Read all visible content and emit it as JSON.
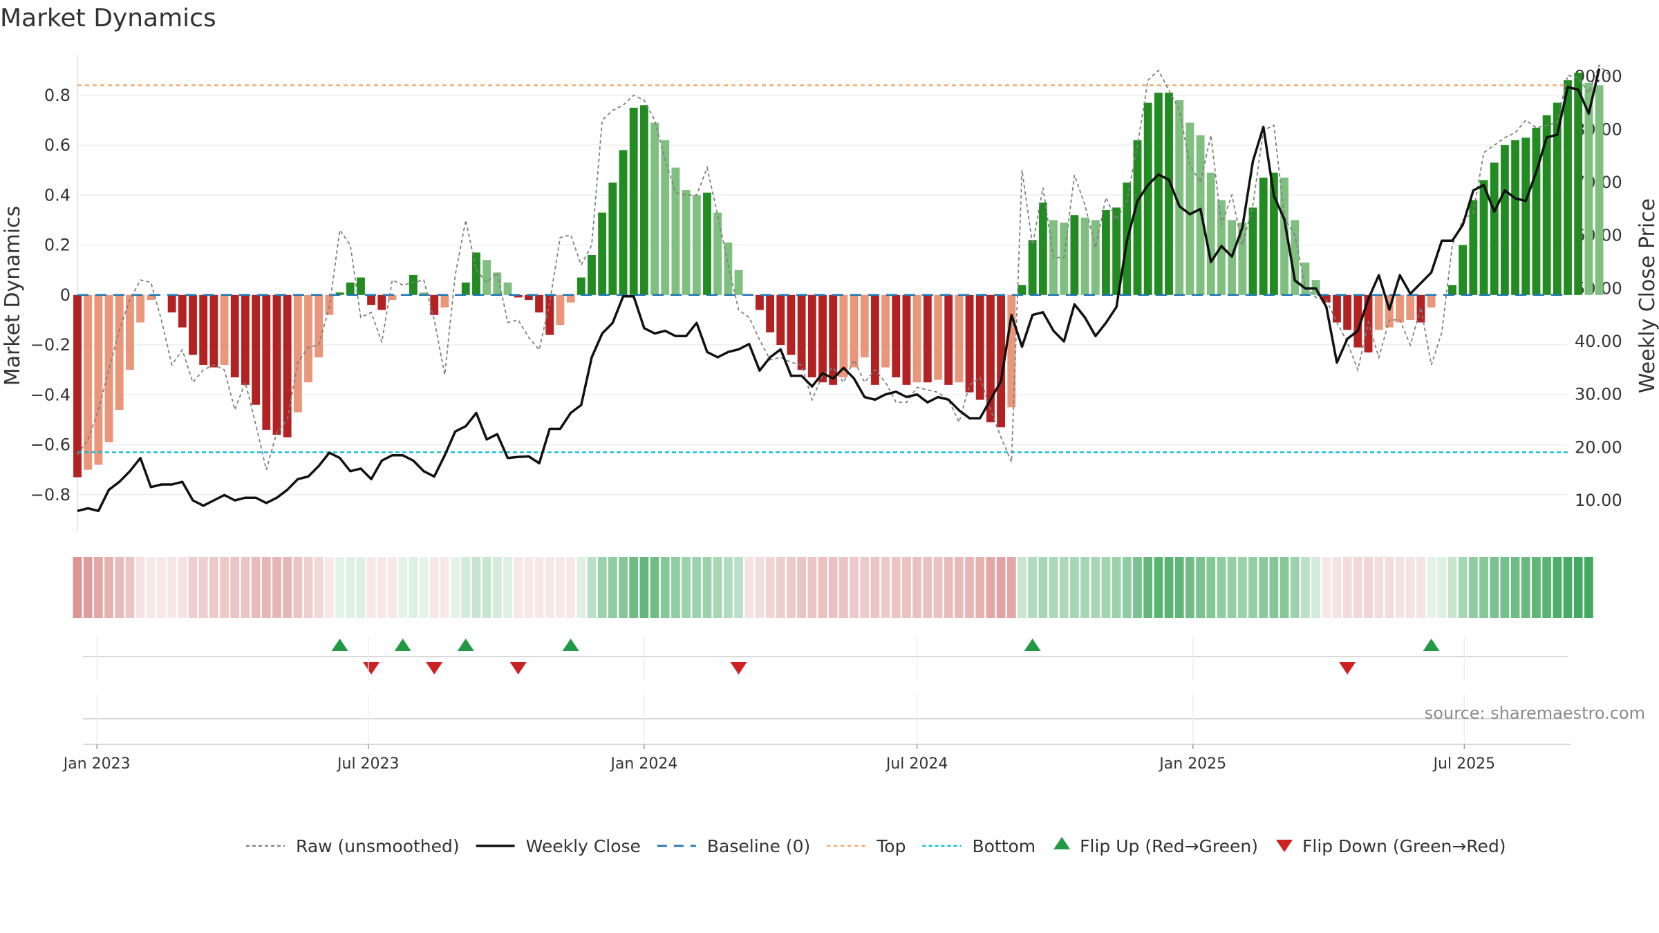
{
  "chart_data": {
    "type": "bar",
    "title": "Market Dynamics",
    "ylabel": "Market Dynamics",
    "y2label": "Weekly Close Price",
    "ylim": [
      -0.95,
      0.96
    ],
    "y2lim": [
      4,
      94
    ],
    "yticks": [
      0.8,
      0.6,
      0.4,
      0.2,
      0,
      -0.2,
      -0.4,
      -0.6,
      -0.8
    ],
    "ytick_labels": [
      "0.8",
      "0.6",
      "0.4",
      "0.2",
      "0",
      "−0.2",
      "−0.4",
      "−0.6",
      "−0.8"
    ],
    "y2ticks": [
      90,
      80,
      70,
      60,
      50,
      40,
      30,
      20,
      10
    ],
    "y2tick_labels": [
      "90.00",
      "80.00",
      "70.00",
      "60.00",
      "50.00",
      "40.00",
      "30.00",
      "20.00",
      "10.00"
    ],
    "xlim": [
      "2022-12-19",
      "2025-09-08"
    ],
    "x_ticks": [
      {
        "date": "2023-01-01",
        "label": "Jan 2023"
      },
      {
        "date": "2023-07-01",
        "label": "Jul 2023"
      },
      {
        "date": "2024-01-01",
        "label": "Jan 2024"
      },
      {
        "date": "2024-07-01",
        "label": "Jul 2024"
      },
      {
        "date": "2025-01-01",
        "label": "Jan 2025"
      },
      {
        "date": "2025-07-01",
        "label": "Jul 2025"
      }
    ],
    "start_date": "2022-12-19",
    "frequency": "weekly",
    "top_line": 0.84,
    "bottom_line": -0.63,
    "baseline": 0,
    "bar_colors": {
      "strong_up": "#228b22",
      "weak_up": "#7fbf7f",
      "strong_down": "#b22222",
      "weak_down": "#e9967a"
    },
    "line_colors": {
      "raw": "#808080",
      "close": "#111111",
      "baseline": "#1f77b4",
      "top": "#f4a460",
      "bottom": "#00bcd4",
      "flip_up": "#229944",
      "flip_down": "#cc2222"
    },
    "dynamics": [
      -0.73,
      -0.7,
      -0.68,
      -0.59,
      -0.46,
      -0.3,
      -0.11,
      -0.02,
      0,
      -0.07,
      -0.13,
      -0.24,
      -0.28,
      -0.29,
      -0.28,
      -0.33,
      -0.36,
      -0.44,
      -0.54,
      -0.56,
      -0.57,
      -0.47,
      -0.35,
      -0.25,
      -0.08,
      0.01,
      0.05,
      0.07,
      -0.04,
      -0.06,
      -0.02,
      0,
      0.08,
      0.01,
      -0.08,
      -0.05,
      0,
      0.05,
      0.17,
      0.14,
      0.09,
      0.05,
      -0.01,
      -0.02,
      -0.07,
      -0.16,
      -0.12,
      -0.03,
      0.07,
      0.16,
      0.33,
      0.45,
      0.58,
      0.75,
      0.76,
      0.69,
      0.62,
      0.51,
      0.42,
      0.4,
      0.41,
      0.33,
      0.21,
      0.1,
      0,
      -0.06,
      -0.15,
      -0.2,
      -0.24,
      -0.3,
      -0.33,
      -0.35,
      -0.36,
      -0.33,
      -0.29,
      -0.25,
      -0.36,
      -0.29,
      -0.33,
      -0.36,
      -0.35,
      -0.35,
      -0.34,
      -0.36,
      -0.35,
      -0.39,
      -0.42,
      -0.51,
      -0.53,
      -0.45,
      0.04,
      0.22,
      0.37,
      0.3,
      0.29,
      0.32,
      0.31,
      0.3,
      0.34,
      0.35,
      0.45,
      0.62,
      0.77,
      0.81,
      0.81,
      0.78,
      0.69,
      0.64,
      0.49,
      0.38,
      0.3,
      0.29,
      0.35,
      0.47,
      0.49,
      0.47,
      0.3,
      0.13,
      0.06,
      -0.03,
      -0.11,
      -0.14,
      -0.21,
      -0.23,
      -0.14,
      -0.13,
      -0.11,
      -0.1,
      -0.11,
      -0.05,
      0,
      0.04,
      0.2,
      0.38,
      0.46,
      0.53,
      0.6,
      0.62,
      0.63,
      0.67,
      0.72,
      0.77,
      0.86,
      0.89,
      0.85,
      0.84
    ],
    "raw": [
      -0.64,
      -0.58,
      -0.46,
      -0.3,
      -0.14,
      -0.02,
      0.06,
      0.05,
      -0.1,
      -0.28,
      -0.22,
      -0.35,
      -0.3,
      -0.28,
      -0.3,
      -0.46,
      -0.35,
      -0.52,
      -0.7,
      -0.55,
      -0.5,
      -0.27,
      -0.21,
      -0.2,
      -0.05,
      0.26,
      0.2,
      -0.09,
      -0.07,
      -0.19,
      0.06,
      0.04,
      0.05,
      0.06,
      -0.1,
      -0.32,
      0.08,
      0.3,
      0.1,
      0.05,
      0.09,
      -0.11,
      -0.1,
      -0.17,
      -0.22,
      -0.03,
      0.23,
      0.24,
      0.12,
      0.2,
      0.7,
      0.74,
      0.76,
      0.8,
      0.78,
      0.7,
      0.54,
      0.41,
      0.4,
      0.4,
      0.51,
      0.32,
      0.12,
      -0.06,
      -0.09,
      -0.18,
      -0.26,
      -0.25,
      -0.27,
      -0.28,
      -0.42,
      -0.32,
      -0.29,
      -0.35,
      -0.26,
      -0.35,
      -0.3,
      -0.35,
      -0.43,
      -0.43,
      -0.37,
      -0.38,
      -0.39,
      -0.42,
      -0.51,
      -0.36,
      -0.33,
      -0.46,
      -0.57,
      -0.67,
      0.5,
      0.2,
      0.43,
      0.15,
      0.15,
      0.48,
      0.36,
      0.19,
      0.39,
      0.3,
      0.38,
      0.6,
      0.86,
      0.9,
      0.82,
      0.74,
      0.52,
      0.45,
      0.64,
      0.28,
      0.4,
      0.2,
      0.36,
      0.66,
      0.68,
      0.31,
      0.24,
      0.03,
      -0.01,
      -0.02,
      -0.11,
      -0.19,
      -0.3,
      -0.11,
      -0.25,
      -0.1,
      -0.1,
      -0.2,
      -0.05,
      -0.28,
      -0.15,
      0.2,
      0.3,
      0.33,
      0.57,
      0.6,
      0.63,
      0.65,
      0.7,
      0.67,
      0.68,
      0.69,
      0.88,
      0.87,
      0.81,
      0.92,
      0.88
    ],
    "close": [
      8.0,
      8.5,
      8.0,
      12.0,
      13.5,
      15.5,
      18.0,
      12.5,
      13.0,
      13.0,
      13.5,
      10.0,
      9.0,
      10.0,
      11.0,
      10.0,
      10.5,
      10.5,
      9.5,
      10.5,
      12.0,
      14.0,
      14.5,
      16.5,
      19.0,
      18.0,
      15.5,
      16.0,
      14.0,
      17.5,
      18.5,
      18.5,
      17.5,
      15.5,
      14.5,
      18.5,
      23.0,
      24.0,
      26.5,
      21.5,
      22.5,
      18.0,
      18.2,
      18.3,
      17.0,
      23.5,
      23.5,
      26.5,
      28.0,
      37.0,
      41.5,
      43.5,
      48.5,
      48.5,
      42.5,
      41.5,
      42.0,
      41.0,
      41.0,
      43.5,
      38.0,
      37.0,
      38.0,
      38.5,
      39.5,
      34.5,
      37.0,
      38.5,
      33.5,
      33.5,
      31.5,
      34.0,
      33.0,
      35.0,
      33.0,
      29.5,
      29.0,
      30.0,
      30.5,
      29.5,
      30.0,
      28.5,
      29.5,
      29.0,
      27.0,
      25.5,
      25.5,
      29.0,
      32.5,
      45.0,
      39.0,
      45.0,
      45.5,
      42.0,
      40.0,
      47.0,
      44.5,
      41.0,
      43.5,
      46.5,
      59.0,
      66.5,
      69.5,
      71.5,
      70.5,
      65.5,
      64.0,
      65.0,
      55.0,
      58.0,
      56.0,
      61.5,
      74.0,
      80.5,
      67.5,
      63.0,
      51.5,
      50.0,
      50.0,
      46.5,
      36.0,
      40.5,
      42.0,
      48.0,
      52.5,
      46.0,
      52.5,
      49.0,
      51.0,
      53.0,
      59.0,
      59.0,
      62.0,
      68.5,
      69.5,
      64.5,
      68.5,
      67.0,
      66.5,
      72.0,
      78.5,
      79.0,
      88.0,
      87.5,
      83.0,
      91.5
    ],
    "regime_strength": [
      -0.55,
      -0.5,
      -0.45,
      -0.4,
      -0.35,
      -0.3,
      -0.15,
      -0.12,
      -0.1,
      -0.12,
      -0.15,
      -0.25,
      -0.25,
      -0.28,
      -0.28,
      -0.3,
      -0.3,
      -0.35,
      -0.38,
      -0.38,
      -0.38,
      -0.3,
      -0.25,
      -0.2,
      -0.12,
      0.1,
      0.15,
      0.15,
      -0.1,
      -0.1,
      -0.1,
      0.1,
      0.15,
      0.1,
      -0.1,
      -0.1,
      0.1,
      0.2,
      0.25,
      0.25,
      0.2,
      0.15,
      -0.1,
      -0.1,
      -0.1,
      -0.12,
      -0.12,
      -0.1,
      0.15,
      0.3,
      0.45,
      0.5,
      0.55,
      0.65,
      0.7,
      0.65,
      0.55,
      0.5,
      0.45,
      0.45,
      0.45,
      0.4,
      0.35,
      0.3,
      -0.15,
      -0.18,
      -0.22,
      -0.25,
      -0.28,
      -0.3,
      -0.3,
      -0.32,
      -0.32,
      -0.3,
      -0.28,
      -0.28,
      -0.3,
      -0.28,
      -0.3,
      -0.32,
      -0.32,
      -0.32,
      -0.32,
      -0.35,
      -0.35,
      -0.38,
      -0.4,
      -0.45,
      -0.48,
      -0.45,
      0.25,
      0.35,
      0.4,
      0.38,
      0.38,
      0.4,
      0.4,
      0.4,
      0.42,
      0.45,
      0.5,
      0.6,
      0.7,
      0.75,
      0.75,
      0.72,
      0.65,
      0.6,
      0.55,
      0.5,
      0.48,
      0.45,
      0.48,
      0.52,
      0.55,
      0.55,
      0.45,
      0.3,
      0.2,
      -0.12,
      -0.15,
      -0.18,
      -0.2,
      -0.22,
      -0.18,
      -0.18,
      -0.15,
      -0.15,
      -0.15,
      0.1,
      0.15,
      0.25,
      0.4,
      0.5,
      0.55,
      0.6,
      0.62,
      0.65,
      0.68,
      0.72,
      0.75,
      0.8,
      0.82,
      0.85,
      0.85
    ],
    "flip_up_dates": [
      "2023-06-12",
      "2023-07-24",
      "2023-09-04",
      "2023-11-13",
      "2024-09-16",
      "2025-06-09"
    ],
    "flip_down_dates": [
      "2023-07-03",
      "2023-08-14",
      "2023-10-09",
      "2024-03-04",
      "2025-04-14"
    ],
    "annotation": "source: sharemaestro.com",
    "legend": {
      "position": "bottom-center",
      "entries": [
        {
          "key": "raw",
          "label": "Raw (unsmoothed)"
        },
        {
          "key": "close",
          "label": "Weekly Close"
        },
        {
          "key": "baseline",
          "label": "Baseline (0)"
        },
        {
          "key": "top",
          "label": "Top"
        },
        {
          "key": "bottom",
          "label": "Bottom"
        },
        {
          "key": "flip_up",
          "label": "Flip Up (Red→Green)"
        },
        {
          "key": "flip_down",
          "label": "Flip Down (Green→Red)"
        }
      ]
    }
  }
}
